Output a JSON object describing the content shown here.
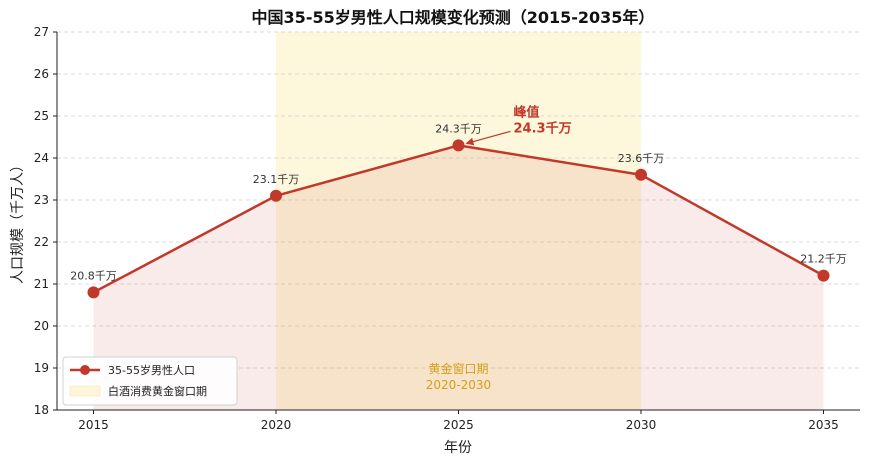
{
  "chart_data": {
    "type": "line",
    "title": "中国35-55岁男性人口规模变化预测（2015-2035年）",
    "xlabel": "年份",
    "ylabel": "人口规模（千万人）",
    "x": [
      2015,
      2020,
      2025,
      2030,
      2035
    ],
    "xlim": [
      2014,
      2036
    ],
    "ylim": [
      18,
      27
    ],
    "yticks": [
      18,
      19,
      20,
      21,
      22,
      23,
      24,
      25,
      26,
      27
    ],
    "grid": "y-dashed",
    "series": [
      {
        "name": "35-55岁男性人口",
        "values": [
          20.8,
          23.1,
          24.3,
          23.6,
          21.2
        ],
        "labels": [
          "20.8千万",
          "23.1千万",
          "24.3千万",
          "23.6千万",
          "21.2千万"
        ],
        "color": "#c0392b"
      }
    ],
    "shaded_region": {
      "name": "白酒消费黄金窗口期",
      "x_start": 2020,
      "x_end": 2030,
      "color": "#fdf6d8",
      "label_line1": "黄金窗口期",
      "label_line2": "2020-2030",
      "label_color": "#d4a017"
    },
    "annotation": {
      "line1": "峰值",
      "line2": "24.3千万",
      "x": 2025,
      "y": 24.3,
      "color": "#c0392b"
    },
    "legend": {
      "placement": "bottom-left"
    }
  }
}
